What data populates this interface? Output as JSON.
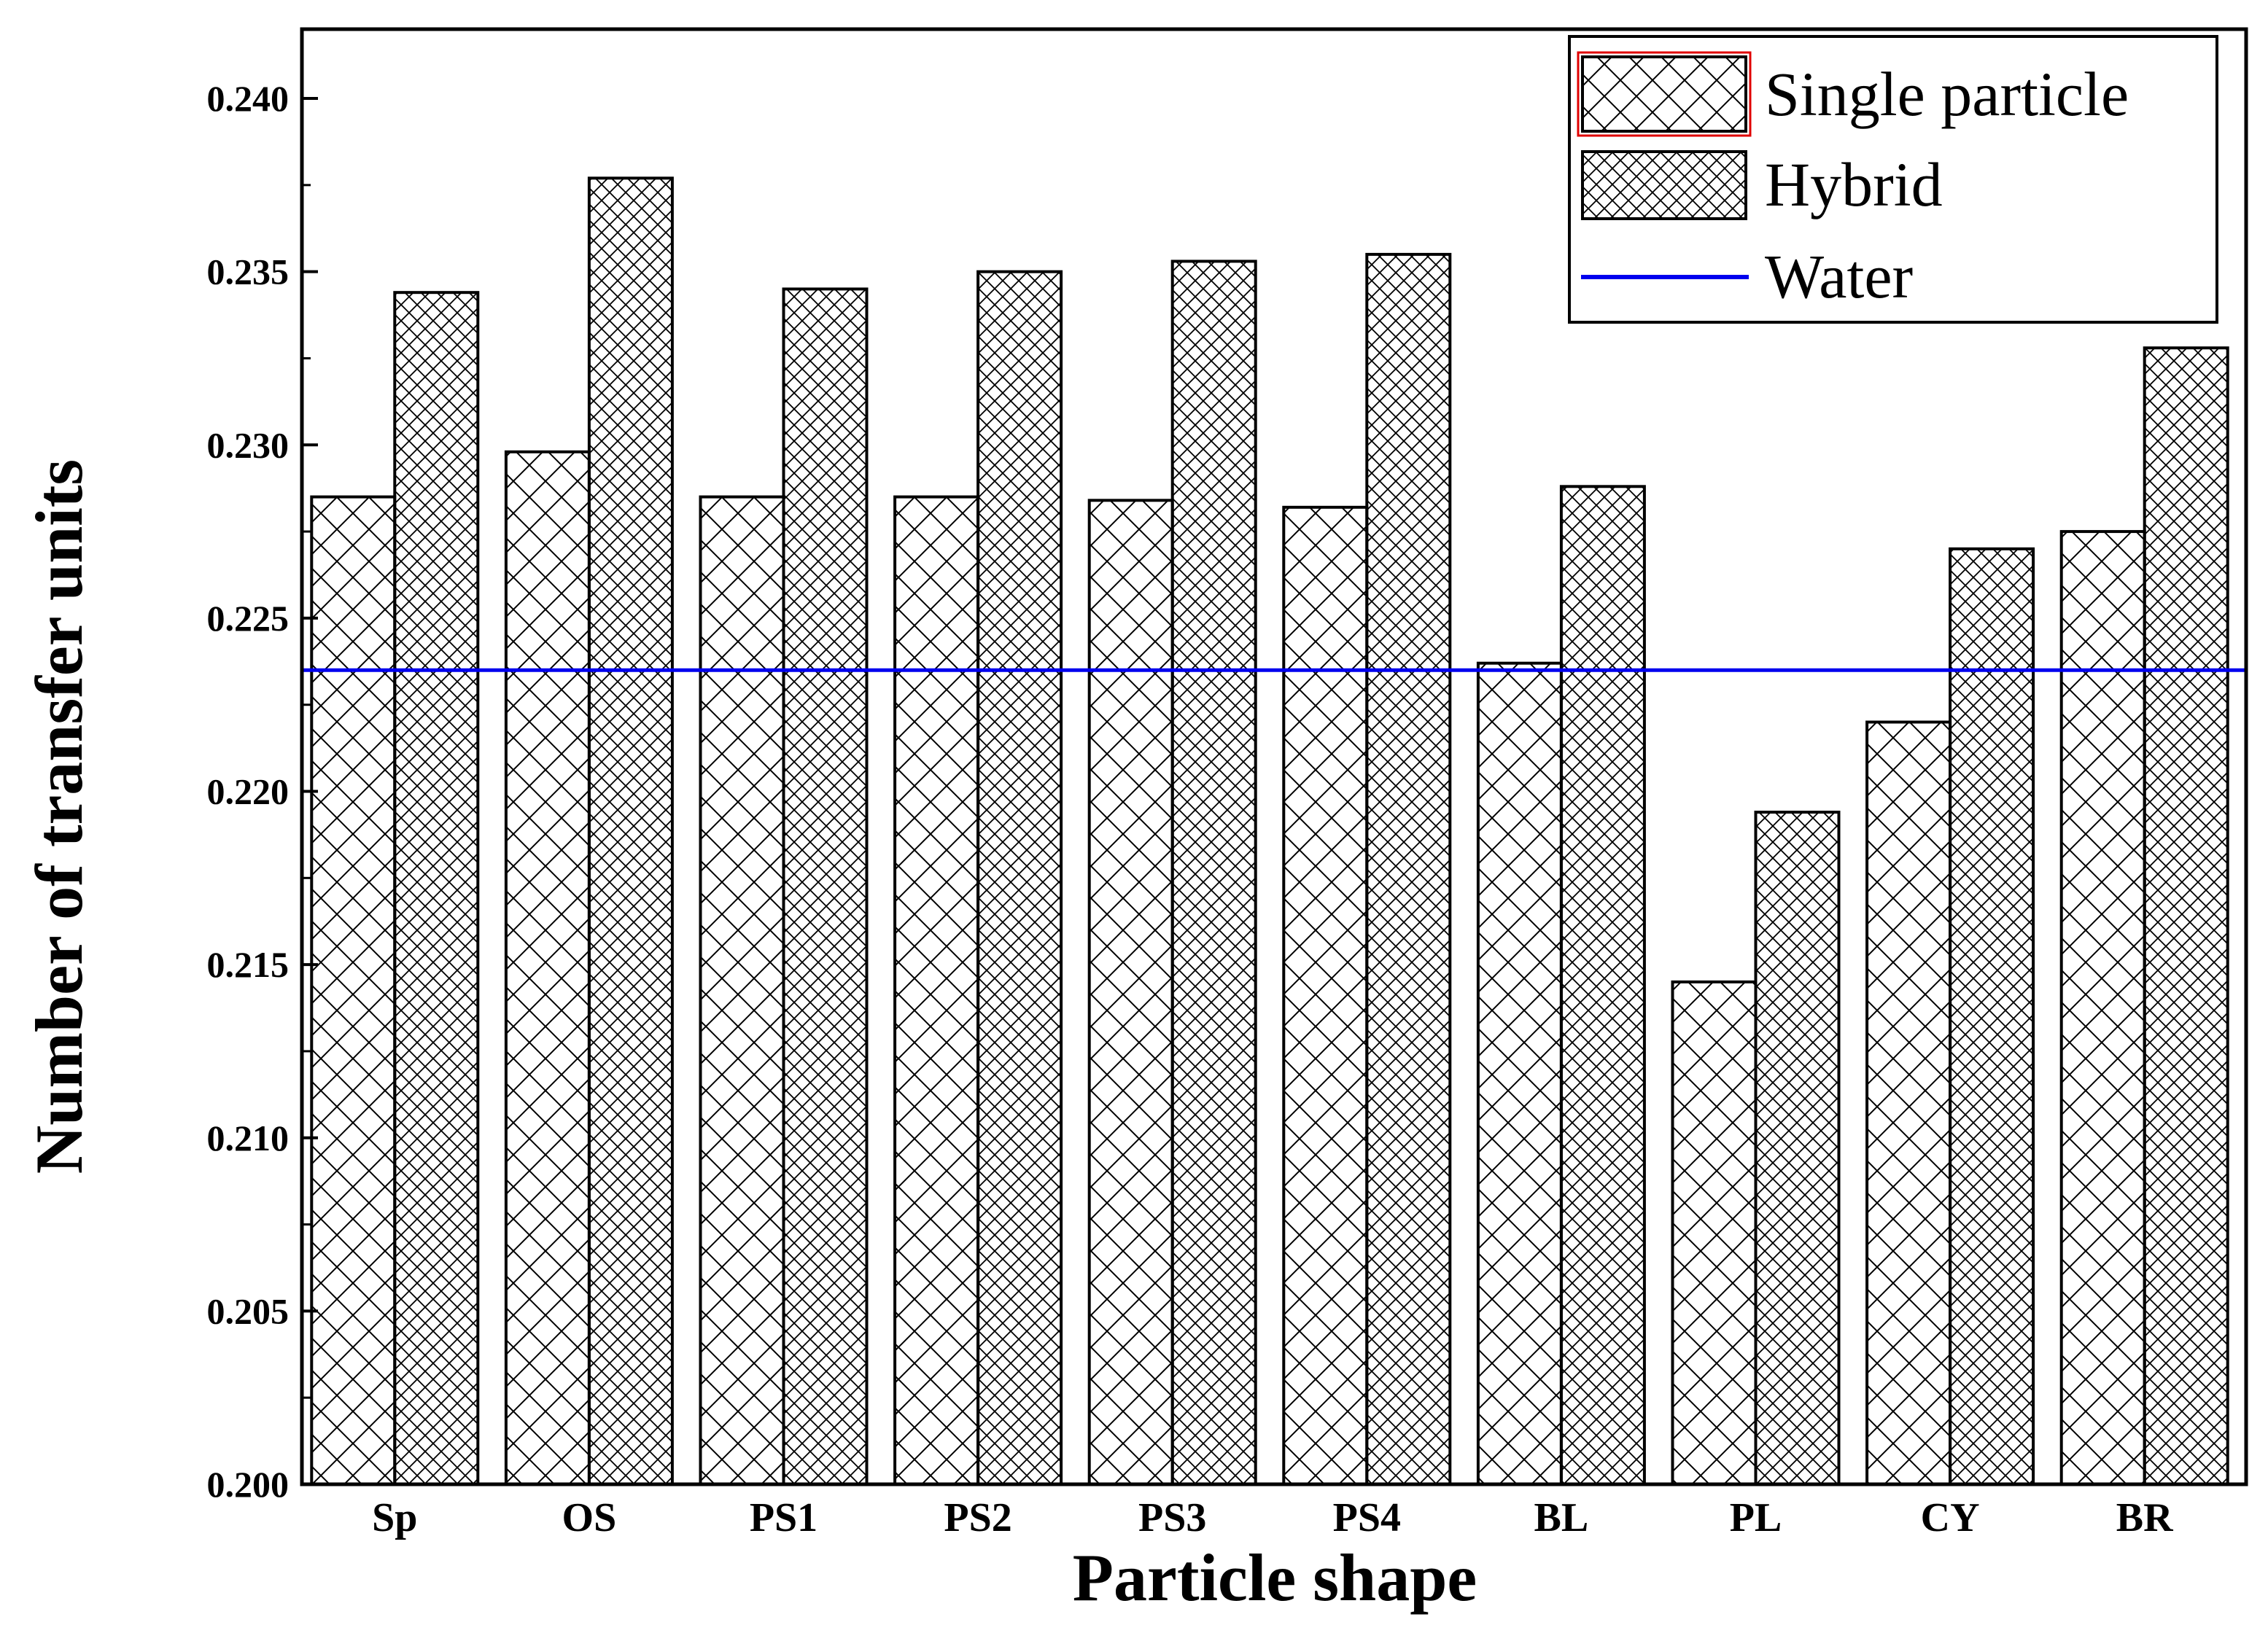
{
  "chart_data": {
    "type": "bar",
    "title": "",
    "xlabel": "Particle shape",
    "ylabel": "Number of transfer units",
    "categories": [
      "Sp",
      "OS",
      "PS1",
      "PS2",
      "PS3",
      "PS4",
      "BL",
      "PL",
      "CY",
      "BR"
    ],
    "series": [
      {
        "name": "Single particle",
        "values": [
          0.2285,
          0.2298,
          0.2285,
          0.2285,
          0.2284,
          0.2282,
          0.2237,
          0.2145,
          0.222,
          0.2275
        ]
      },
      {
        "name": "Hybrid",
        "values": [
          0.2344,
          0.2377,
          0.2345,
          0.235,
          0.2353,
          0.2355,
          0.2288,
          0.2194,
          0.227,
          0.2328
        ]
      }
    ],
    "reference_line": {
      "name": "Water",
      "value": 0.2235,
      "color": "#0000ee"
    },
    "ylim": [
      0.2,
      0.242
    ],
    "yticks": [
      "0.200",
      "0.205",
      "0.210",
      "0.215",
      "0.220",
      "0.225",
      "0.230",
      "0.235",
      "0.240"
    ],
    "legend_position": "top-right",
    "colors": {
      "bar_fill": "#ffffff",
      "hatch": "#000000",
      "legend_highlight": "#e00000"
    }
  }
}
